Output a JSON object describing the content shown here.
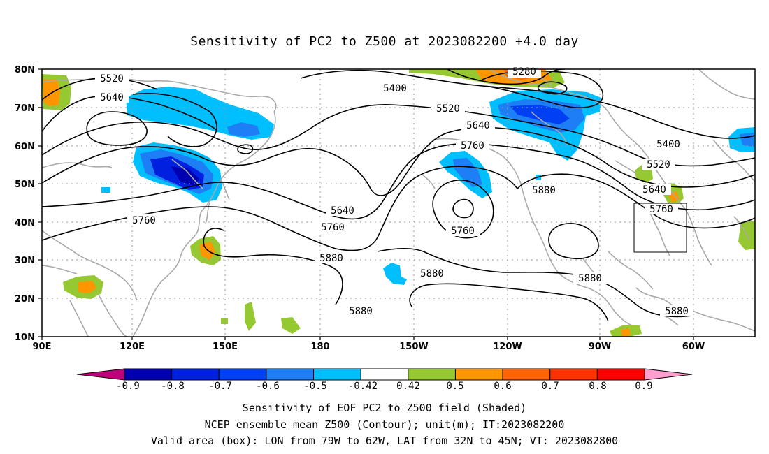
{
  "title": "Sensitivity of PC2 to Z500 at 2023082200 +4.0 day",
  "map": {
    "lat_labels": [
      "80N",
      "70N",
      "60N",
      "50N",
      "40N",
      "30N",
      "20N",
      "10N"
    ],
    "lon_labels": [
      "90E",
      "120E",
      "150E",
      "180",
      "150W",
      "120W",
      "90W",
      "60W"
    ],
    "contour_labels": [
      "5280",
      "5400",
      "5520",
      "5640",
      "5760",
      "5880"
    ],
    "valid_box": {
      "lon_from": "79W",
      "lon_to": "62W",
      "lat_from": "32N",
      "lat_to": "45N"
    }
  },
  "colorbar": {
    "labels": [
      "-0.9",
      "-0.8",
      "-0.7",
      "-0.6",
      "-0.5",
      "-0.42",
      "0.42",
      "0.5",
      "0.6",
      "0.7",
      "0.8",
      "0.9"
    ],
    "colors": [
      "#c0007a",
      "#0000b0",
      "#0020e0",
      "#0040f5",
      "#1e7ef5",
      "#00bfff",
      "#ffffff",
      "#96c832",
      "#ff9600",
      "#ff6400",
      "#ff3200",
      "#ff0000",
      "#ff9ecf"
    ]
  },
  "footer": {
    "line1": "Sensitivity of EOF PC2 to Z500 field (Shaded)",
    "line2": "NCEP ensemble mean Z500 (Contour); unit(m); IT:2023082200",
    "line3": "Valid area (box): LON from 79W to 62W, LAT from 32N to 45N; VT: 2023082800"
  }
}
